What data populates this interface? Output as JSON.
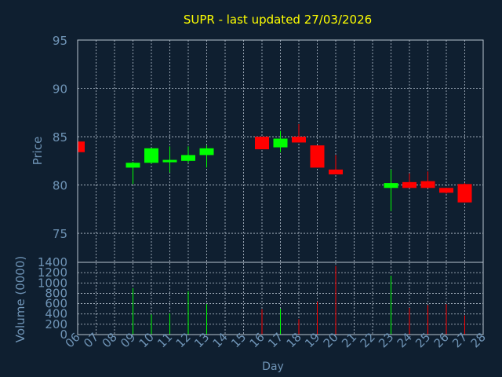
{
  "chart_data": {
    "type": "candlestick",
    "title": "SUPR - last updated 27/03/2026",
    "colors": {
      "background": "#0f1f30",
      "title": "#ffff00",
      "axis_text": "#6f94b6",
      "grid": "#b8c4d0",
      "up": "#00ff00",
      "down": "#ff0000"
    },
    "x": {
      "label": "Day",
      "ticks": [
        "06",
        "07",
        "08",
        "09",
        "10",
        "11",
        "12",
        "13",
        "14",
        "15",
        "16",
        "17",
        "18",
        "19",
        "20",
        "21",
        "22",
        "23",
        "24",
        "25",
        "26",
        "27",
        "28"
      ]
    },
    "price": {
      "label": "Price",
      "ylim": [
        72,
        95
      ],
      "ticks": [
        75,
        80,
        85,
        90,
        95
      ],
      "candles": [
        {
          "day": "06",
          "open": 84.5,
          "high": 84.5,
          "low": 83.4,
          "close": 83.4
        },
        {
          "day": "09",
          "open": 81.8,
          "high": 82.4,
          "low": 80.1,
          "close": 82.3
        },
        {
          "day": "10",
          "open": 82.3,
          "high": 83.8,
          "low": 82.2,
          "close": 83.8
        },
        {
          "day": "11",
          "open": 82.5,
          "high": 84.0,
          "low": 81.3,
          "close": 82.6
        },
        {
          "day": "12",
          "open": 82.5,
          "high": 84.0,
          "low": 82.3,
          "close": 83.1
        },
        {
          "day": "13",
          "open": 83.1,
          "high": 84.1,
          "low": 81.8,
          "close": 83.8
        },
        {
          "day": "16",
          "open": 85.0,
          "high": 85.0,
          "low": 83.7,
          "close": 83.7
        },
        {
          "day": "17",
          "open": 83.9,
          "high": 85.6,
          "low": 83.4,
          "close": 84.8
        },
        {
          "day": "18",
          "open": 85.0,
          "high": 86.3,
          "low": 84.4,
          "close": 84.4
        },
        {
          "day": "19",
          "open": 84.1,
          "high": 84.1,
          "low": 81.8,
          "close": 81.8
        },
        {
          "day": "20",
          "open": 81.6,
          "high": 83.1,
          "low": 81.1,
          "close": 81.1
        },
        {
          "day": "23",
          "open": 79.7,
          "high": 81.6,
          "low": 77.3,
          "close": 80.2
        },
        {
          "day": "24",
          "open": 80.3,
          "high": 81.2,
          "low": 79.7,
          "close": 79.7
        },
        {
          "day": "25",
          "open": 80.4,
          "high": 81.4,
          "low": 79.7,
          "close": 79.7
        },
        {
          "day": "26",
          "open": 79.7,
          "high": 79.7,
          "low": 79.1,
          "close": 79.2
        },
        {
          "day": "27",
          "open": 80.1,
          "high": 80.2,
          "low": 78.2,
          "close": 78.2
        }
      ]
    },
    "volume": {
      "label": "Volume (0000)",
      "ylim": [
        0,
        1400
      ],
      "ticks": [
        0,
        200,
        400,
        600,
        800,
        1000,
        1200,
        1400
      ],
      "bars": [
        {
          "day": "06",
          "value": 0,
          "direction": "down"
        },
        {
          "day": "09",
          "value": 900,
          "direction": "up"
        },
        {
          "day": "10",
          "value": 390,
          "direction": "up"
        },
        {
          "day": "11",
          "value": 410,
          "direction": "up"
        },
        {
          "day": "12",
          "value": 840,
          "direction": "up"
        },
        {
          "day": "13",
          "value": 590,
          "direction": "up"
        },
        {
          "day": "16",
          "value": 490,
          "direction": "down"
        },
        {
          "day": "17",
          "value": 500,
          "direction": "up"
        },
        {
          "day": "18",
          "value": 300,
          "direction": "down"
        },
        {
          "day": "19",
          "value": 640,
          "direction": "down"
        },
        {
          "day": "20",
          "value": 1330,
          "direction": "down"
        },
        {
          "day": "23",
          "value": 1140,
          "direction": "up"
        },
        {
          "day": "24",
          "value": 520,
          "direction": "down"
        },
        {
          "day": "25",
          "value": 570,
          "direction": "down"
        },
        {
          "day": "26",
          "value": 590,
          "direction": "down"
        },
        {
          "day": "27",
          "value": 370,
          "direction": "down"
        }
      ]
    }
  }
}
